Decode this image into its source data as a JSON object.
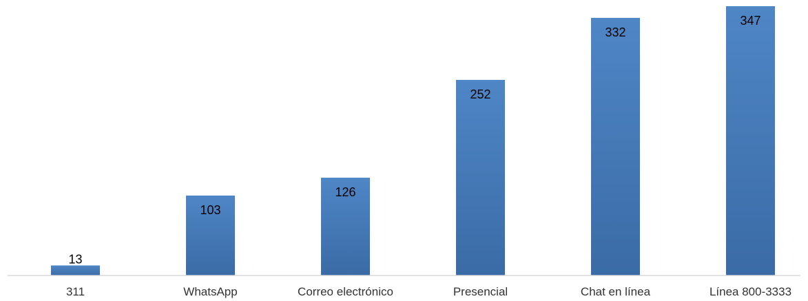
{
  "chart_data": {
    "type": "bar",
    "title": "",
    "xlabel": "",
    "ylabel": "",
    "categories": [
      "311",
      "WhatsApp",
      "Correo electrónico",
      "Presencial",
      "Chat en línea",
      "Línea 800-3333"
    ],
    "values": [
      13,
      103,
      126,
      252,
      332,
      347
    ],
    "ylim": [
      0,
      347
    ],
    "grid": false,
    "legend": "none",
    "colors": {
      "bar_top": "#4f86c6",
      "bar_bottom": "#3a6ba6",
      "axis": "#d9d9d9"
    }
  }
}
